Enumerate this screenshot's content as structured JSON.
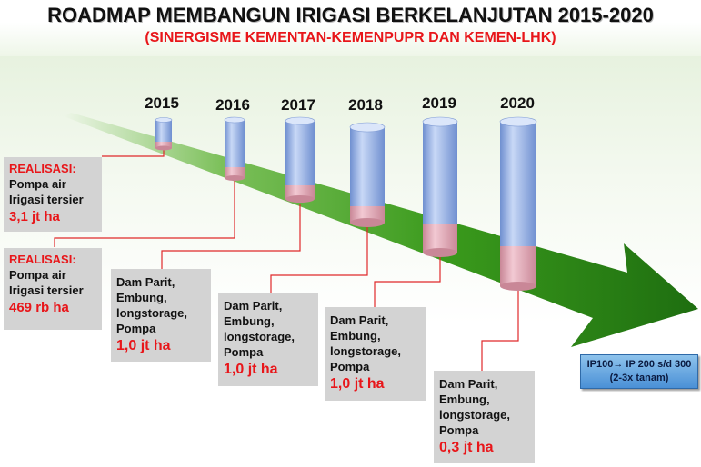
{
  "title": "ROADMAP MEMBANGUN IRIGASI BERKELANJUTAN 2015-2020",
  "subtitle": "(SINERGISME KEMENTAN-KEMENPUPR  DAN KEMEN-LHK)",
  "years": [
    "2015",
    "2016",
    "2017",
    "2018",
    "2019",
    "2020"
  ],
  "boxes": [
    {
      "label": "REALISASI:",
      "text": "Pompa air Irigasi tersier",
      "value": "3,1 jt ha"
    },
    {
      "label": "REALISASI:",
      "text": "Pompa air Irigasi tersier",
      "value": "469 rb ha"
    },
    {
      "label": "",
      "text": "Dam Parit, Embung, longstorage, Pompa",
      "value": "1,0 jt ha"
    },
    {
      "label": "",
      "text": "Dam Parit, Embung, longstorage, Pompa",
      "value": "1,0 jt ha"
    },
    {
      "label": "",
      "text": "Dam Parit, Embung, longstorage, Pompa",
      "value": "1,0 jt ha"
    },
    {
      "label": "",
      "text": "Dam Parit, Embung, longstorage, Pompa",
      "value": "0,3 jt ha"
    }
  ],
  "ip_note": "IP100→ IP 200 s/d 300 (2-3x tanam)",
  "colors": {
    "title": "#111111",
    "subtitle": "#e8161a",
    "arrow_green": "#3a9a1c",
    "cylinder_blue": "#8fb0e6",
    "cylinder_pink": "#e6a8b8",
    "connector": "#e0292b",
    "box_gray": "#d3d3d3",
    "value_red": "#e8161a"
  }
}
